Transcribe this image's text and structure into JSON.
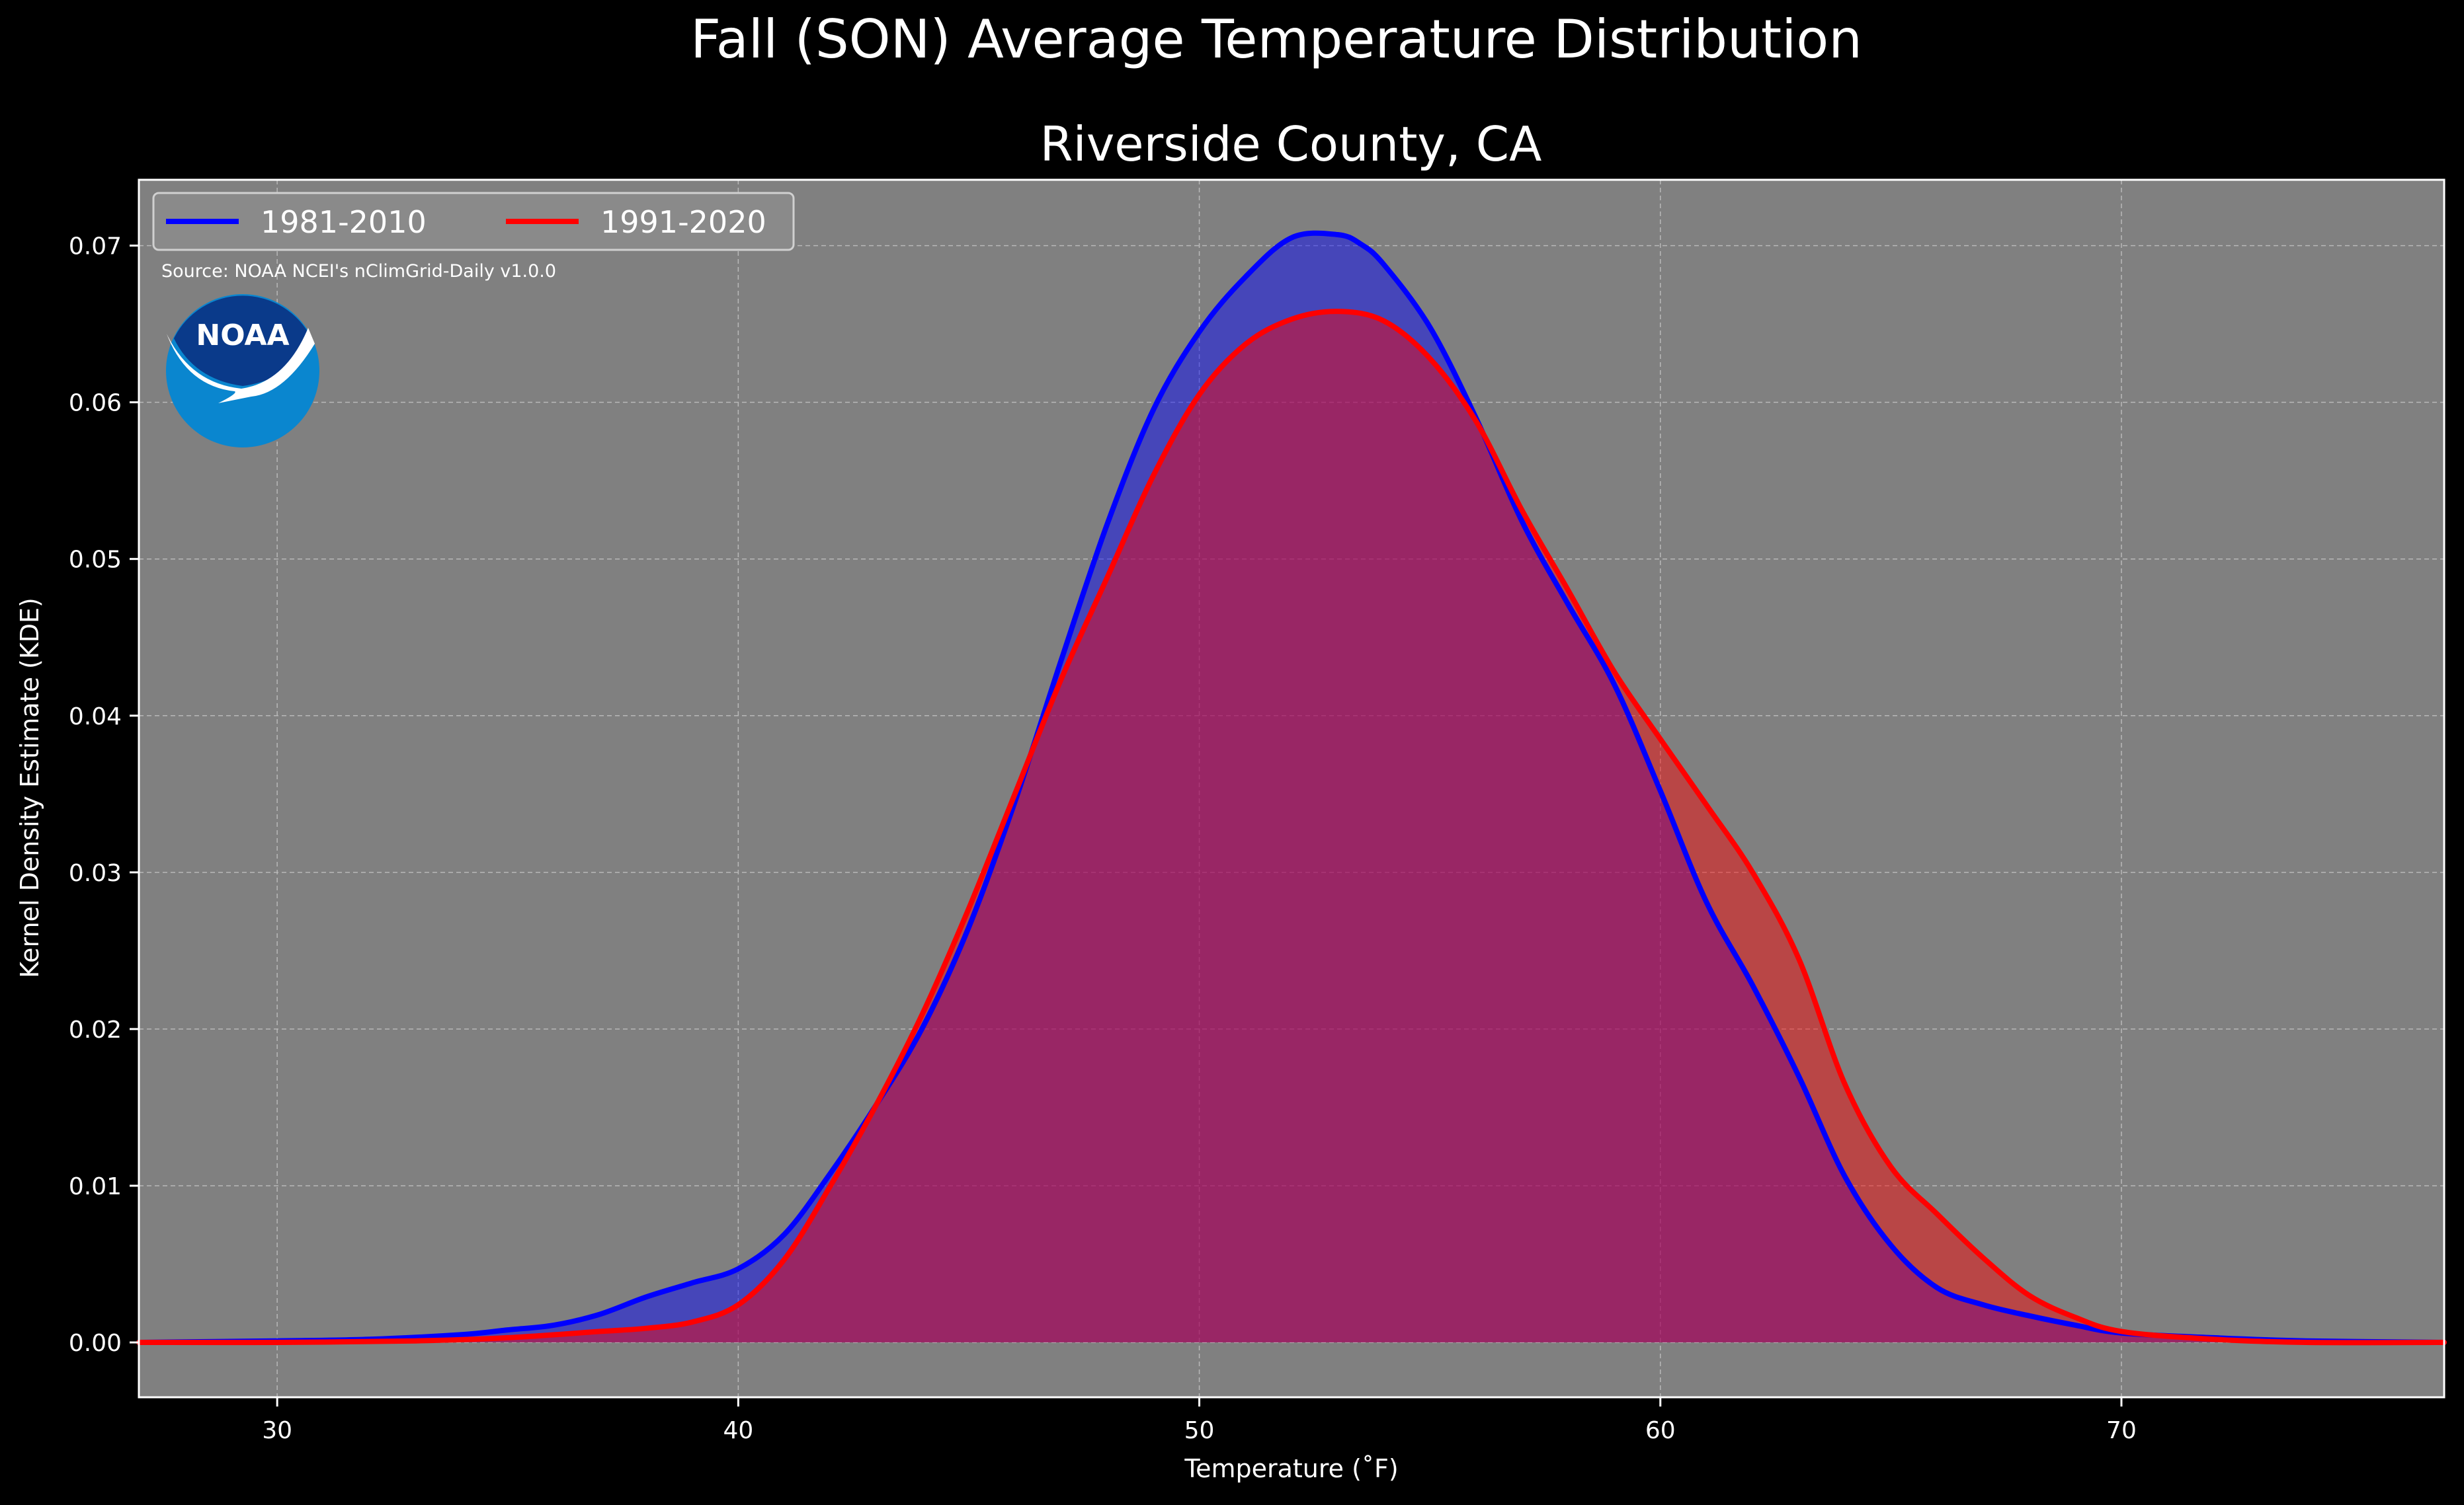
{
  "chart_data": {
    "type": "area",
    "title": "Fall (SON) Average Temperature Distribution",
    "subtitle": "Riverside County, CA",
    "xlabel": "Temperature ($^\\circ$F)",
    "xlabel_display": "Temperature (˚F)",
    "ylabel": "Kernel Density Estimate (KDE)",
    "xlim": [
      27,
      77
    ],
    "ylim": [
      -0.0035,
      0.0742
    ],
    "xticks": [
      30,
      40,
      50,
      60,
      70
    ],
    "xtick_labels": [
      "30",
      "40",
      "50",
      "60",
      "70"
    ],
    "yticks": [
      0.0,
      0.01,
      0.02,
      0.03,
      0.04,
      0.05,
      0.06,
      0.07
    ],
    "ytick_labels": [
      "0.00",
      "0.01",
      "0.02",
      "0.03",
      "0.04",
      "0.05",
      "0.06",
      "0.07"
    ],
    "grid": true,
    "legend_position": "top-left",
    "source_note": "Source: NOAA NCEI's nClimGrid-Daily v1.0.0",
    "logo_text": "NOAA",
    "colors": {
      "background": "#000000",
      "plot_background": "#808080",
      "text": "#ffffff",
      "logo_dark": "#0a3a8a",
      "logo_light": "#0a86cf"
    },
    "series": [
      {
        "name": "1981-2010",
        "color": "#0000ff",
        "fill": "#0000ff",
        "fill_opacity": 0.45,
        "x": [
          27,
          30,
          32,
          34,
          35,
          36,
          37,
          38,
          39,
          40,
          41,
          42,
          43,
          44,
          45,
          46,
          47,
          48,
          49,
          50,
          51,
          52,
          53,
          53.5,
          54,
          55,
          56,
          57,
          58,
          59,
          60,
          61,
          62,
          63,
          64,
          65,
          66,
          67,
          68,
          69,
          70,
          72,
          74,
          77
        ],
        "y": [
          0.0,
          0.0001,
          0.0002,
          0.0005,
          0.0008,
          0.0011,
          0.0018,
          0.0029,
          0.0038,
          0.0047,
          0.0069,
          0.0108,
          0.0152,
          0.0201,
          0.0265,
          0.0345,
          0.0435,
          0.0522,
          0.0595,
          0.0645,
          0.068,
          0.0705,
          0.0707,
          0.0701,
          0.0688,
          0.0648,
          0.059,
          0.0524,
          0.0471,
          0.042,
          0.0352,
          0.0281,
          0.0228,
          0.017,
          0.0106,
          0.0062,
          0.0035,
          0.0024,
          0.0017,
          0.0011,
          0.0006,
          0.0003,
          0.0001,
          0.0
        ]
      },
      {
        "name": "1991-2020",
        "color": "#ff0000",
        "fill": "#ff0000",
        "fill_opacity": 0.45,
        "x": [
          27,
          30,
          33,
          35,
          37,
          38,
          39,
          40,
          41,
          42,
          43,
          44,
          45,
          46,
          47,
          48,
          49,
          50,
          51,
          52,
          53,
          54,
          55,
          56,
          57,
          58,
          59,
          60,
          61,
          62,
          63,
          64,
          65,
          66,
          67,
          68,
          69,
          70,
          72,
          74,
          77
        ],
        "y": [
          0.0,
          0.0,
          0.0001,
          0.0003,
          0.0007,
          0.0009,
          0.0013,
          0.0024,
          0.0053,
          0.01,
          0.0152,
          0.021,
          0.0277,
          0.035,
          0.0423,
          0.0488,
          0.0553,
          0.0605,
          0.0637,
          0.0653,
          0.0658,
          0.0652,
          0.0628,
          0.0588,
          0.0531,
          0.048,
          0.0428,
          0.0385,
          0.0343,
          0.03,
          0.0245,
          0.0165,
          0.0112,
          0.0082,
          0.0054,
          0.003,
          0.0016,
          0.0007,
          0.0002,
          0.0,
          0.0
        ]
      }
    ]
  }
}
